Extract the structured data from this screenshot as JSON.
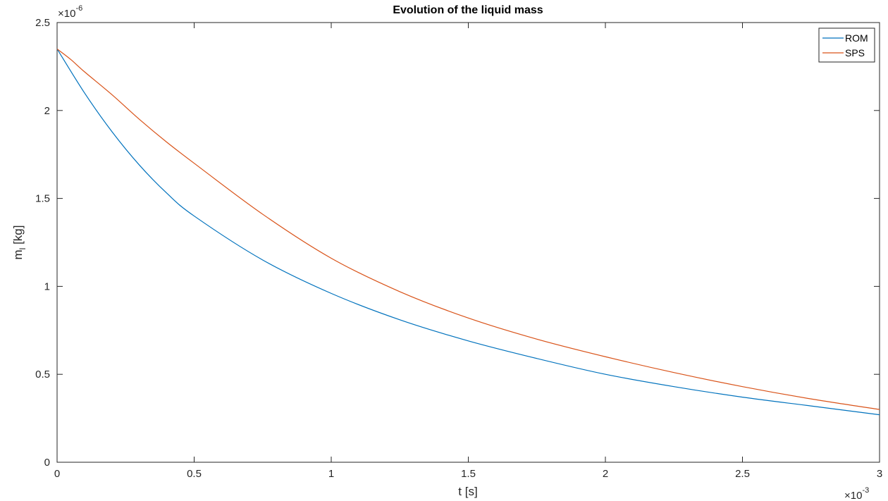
{
  "chart_data": {
    "type": "line",
    "title": "Evolution of the liquid mass",
    "xlabel": "t [s]",
    "ylabel_main": "m",
    "ylabel_sub": "l",
    "ylabel_unit": " [kg]",
    "x_multiplier": "10",
    "x_exponent": "-3",
    "y_multiplier": "10",
    "y_exponent": "-6",
    "xlim": [
      0,
      3
    ],
    "ylim": [
      0,
      2.5
    ],
    "xticks": [
      0,
      0.5,
      1,
      1.5,
      2,
      2.5,
      3
    ],
    "xtick_labels": [
      "0",
      "0.5",
      "1",
      "1.5",
      "2",
      "2.5",
      "3"
    ],
    "yticks": [
      0,
      0.5,
      1,
      1.5,
      2,
      2.5
    ],
    "ytick_labels": [
      "0",
      "0.5",
      "1",
      "1.5",
      "2",
      "2.5"
    ],
    "grid": false,
    "legend_position": "top-right",
    "series": [
      {
        "name": "ROM",
        "color": "#0072BD",
        "x": [
          0,
          0.1,
          0.2,
          0.3,
          0.4,
          0.5,
          0.75,
          1.0,
          1.25,
          1.5,
          1.75,
          2.0,
          2.25,
          2.5,
          2.75,
          3.0
        ],
        "y": [
          2.35,
          2.1,
          1.88,
          1.69,
          1.53,
          1.4,
          1.15,
          0.96,
          0.81,
          0.69,
          0.59,
          0.5,
          0.43,
          0.37,
          0.32,
          0.27
        ]
      },
      {
        "name": "SPS",
        "color": "#D95319",
        "x": [
          0,
          0.05,
          0.1,
          0.2,
          0.3,
          0.4,
          0.5,
          0.75,
          1.0,
          1.25,
          1.5,
          1.75,
          2.0,
          2.25,
          2.5,
          2.75,
          3.0
        ],
        "y": [
          2.35,
          2.29,
          2.22,
          2.09,
          1.95,
          1.82,
          1.7,
          1.41,
          1.16,
          0.97,
          0.82,
          0.7,
          0.6,
          0.51,
          0.43,
          0.36,
          0.3
        ]
      }
    ]
  }
}
